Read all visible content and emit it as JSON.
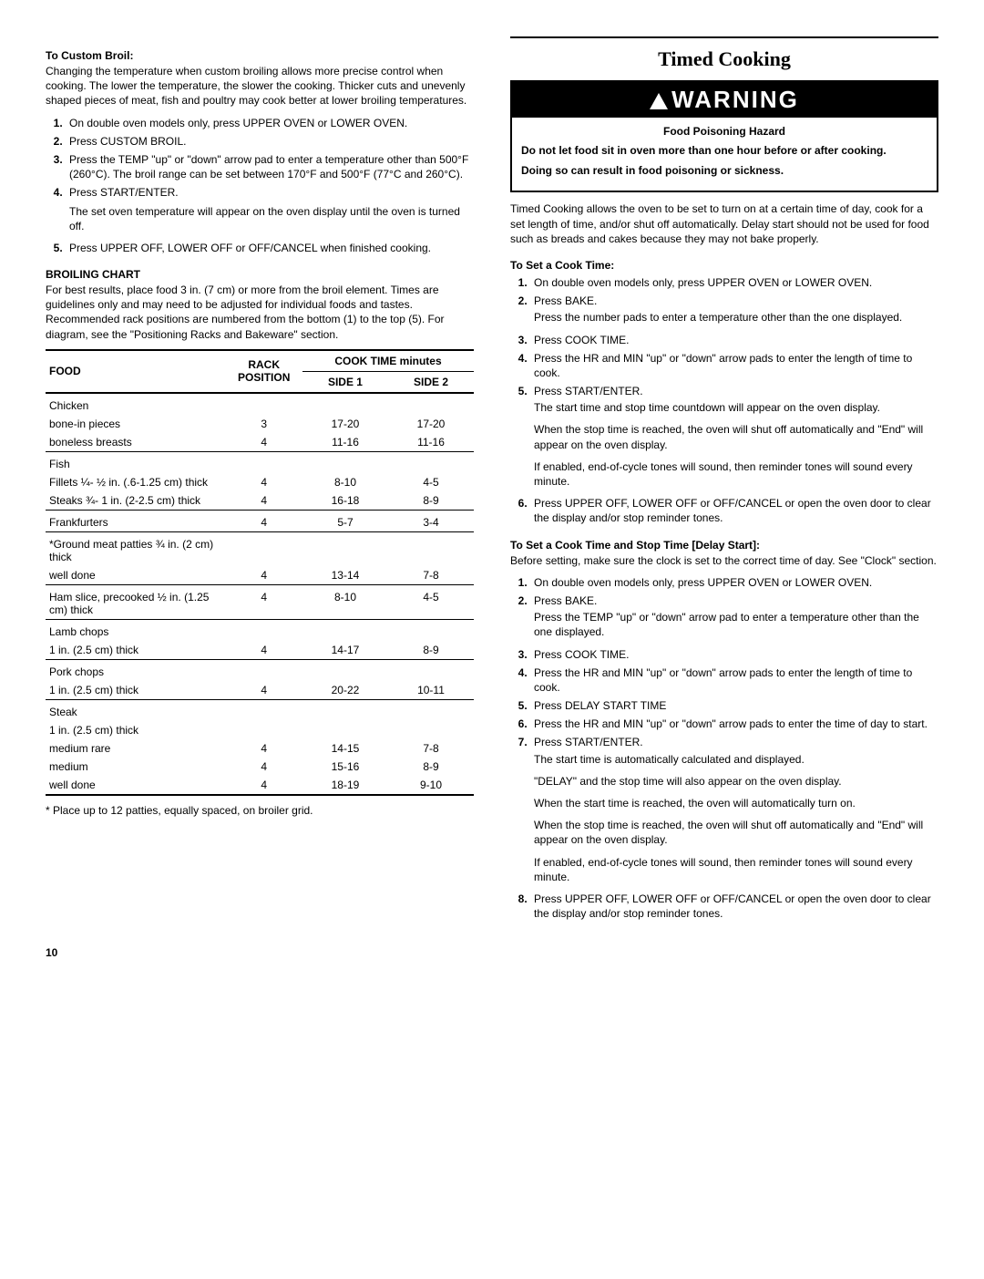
{
  "left": {
    "custom_broil_heading": "To Custom Broil:",
    "custom_broil_intro": "Changing the temperature when custom broiling allows more precise control when cooking. The lower the temperature, the slower the cooking. Thicker cuts and unevenly shaped pieces of meat, fish and poultry may cook better at lower broiling temperatures.",
    "cb": {
      "s1": "On double oven models only, press UPPER OVEN or LOWER OVEN.",
      "s2": "Press CUSTOM BROIL.",
      "s3": "Press the TEMP \"up\" or \"down\" arrow pad to enter a temperature other than 500°F (260°C). The broil range can be set between 170°F and 500°F (77°C and 260°C).",
      "s4": "Press START/ENTER.",
      "s4_note": "The set oven temperature will appear on the oven display until the oven is turned off.",
      "s5": "Press UPPER OFF, LOWER OFF or OFF/CANCEL when finished cooking."
    },
    "chart_heading": "BROILING CHART",
    "chart_intro": "For best results, place food 3 in. (7 cm) or more from the broil element. Times are guidelines only and may need to be adjusted for individual foods and tastes. Recommended rack positions are numbered from the bottom (1) to the top (5). For diagram, see the \"Positioning Racks and Bakeware\" section.",
    "headers": {
      "food": "FOOD",
      "rack": "RACK POSITION",
      "cook": "COOK TIME minutes",
      "side1": "SIDE 1",
      "side2": "SIDE 2"
    },
    "rows": [
      {
        "sep": true,
        "food": "Chicken",
        "rack": "",
        "s1": "",
        "s2": ""
      },
      {
        "food": "bone-in pieces",
        "rack": "3",
        "s1": "17-20",
        "s2": "17-20"
      },
      {
        "food": "boneless breasts",
        "rack": "4",
        "s1": "11-16",
        "s2": "11-16"
      },
      {
        "sep": true,
        "food": "Fish",
        "rack": "",
        "s1": "",
        "s2": ""
      },
      {
        "food": "Fillets ¼- ½ in. (.6-1.25 cm) thick",
        "rack": "4",
        "s1": "8-10",
        "s2": "4-5"
      },
      {
        "food": "Steaks ¾- 1 in. (2-2.5 cm) thick",
        "rack": "4",
        "s1": "16-18",
        "s2": "8-9"
      },
      {
        "sep": true,
        "food": "Frankfurters",
        "rack": "4",
        "s1": "5-7",
        "s2": "3-4"
      },
      {
        "sep": true,
        "food": "*Ground meat patties ¾ in. (2 cm) thick",
        "rack": "",
        "s1": "",
        "s2": ""
      },
      {
        "food": "well done",
        "rack": "4",
        "s1": "13-14",
        "s2": "7-8"
      },
      {
        "sep": true,
        "food": "Ham slice, precooked ½ in. (1.25 cm) thick",
        "rack": "4",
        "s1": "8-10",
        "s2": "4-5"
      },
      {
        "sep": true,
        "food": "Lamb chops",
        "rack": "",
        "s1": "",
        "s2": ""
      },
      {
        "food": "1 in. (2.5 cm) thick",
        "rack": "4",
        "s1": "14-17",
        "s2": "8-9"
      },
      {
        "sep": true,
        "food": "Pork chops",
        "rack": "",
        "s1": "",
        "s2": ""
      },
      {
        "food": "1 in. (2.5 cm) thick",
        "rack": "4",
        "s1": "20-22",
        "s2": "10-11"
      },
      {
        "sep": true,
        "food": "Steak",
        "rack": "",
        "s1": "",
        "s2": ""
      },
      {
        "food": "1 in. (2.5 cm) thick",
        "rack": "",
        "s1": "",
        "s2": ""
      },
      {
        "food": "medium rare",
        "rack": "4",
        "s1": "14-15",
        "s2": "7-8"
      },
      {
        "food": "medium",
        "rack": "4",
        "s1": "15-16",
        "s2": "8-9"
      },
      {
        "last": true,
        "food": "well done",
        "rack": "4",
        "s1": "18-19",
        "s2": "9-10"
      }
    ],
    "footnote": "* Place up to 12 patties, equally spaced, on broiler grid.",
    "pagenum": "10"
  },
  "right": {
    "title": "Timed Cooking",
    "warning_label": "WARNING",
    "hazard": "Food Poisoning Hazard",
    "warn_p1": "Do not let food sit in oven more than one hour before or after cooking.",
    "warn_p2": "Doing so can result in food poisoning or sickness.",
    "intro": "Timed Cooking allows the oven to be set to turn on at a certain time of day, cook for a set length of time, and/or shut off automatically. Delay start should not be used for food such as breads and cakes because they may not bake properly.",
    "ct_heading": "To Set a Cook Time:",
    "ct": {
      "s1": "On double oven models only, press UPPER OVEN or LOWER OVEN.",
      "s2": "Press BAKE.",
      "s2_note": "Press the number pads to enter a temperature other than the one displayed.",
      "s3": "Press COOK TIME.",
      "s4": "Press the HR and MIN \"up\" or \"down\" arrow pads to enter the length of time to cook.",
      "s5": "Press START/ENTER.",
      "s5_note1": "The start time and stop time countdown will appear on the oven display.",
      "s5_note2": "When the stop time is reached, the oven will shut off automatically and \"End\" will appear on the oven display.",
      "s5_note3": "If enabled, end-of-cycle tones will sound, then reminder tones will sound every minute.",
      "s6": "Press UPPER OFF, LOWER OFF or OFF/CANCEL or open the oven door to clear the display and/or stop reminder tones."
    },
    "ds_heading": "To Set a Cook Time and Stop Time [Delay Start]:",
    "ds_intro": "Before setting, make sure the clock is set to the correct time of day. See \"Clock\" section.",
    "ds": {
      "s1": "On double oven models only, press UPPER OVEN or LOWER OVEN.",
      "s2": "Press BAKE.",
      "s2_note": "Press the TEMP \"up\" or \"down\" arrow pad to enter a temperature other than the one displayed.",
      "s3": "Press COOK TIME.",
      "s4": "Press the HR and MIN \"up\" or \"down\" arrow pads to enter the length of time to cook.",
      "s5": "Press DELAY START TIME",
      "s6": "Press the HR and MIN \"up\" or \"down\" arrow pads to enter the time of day to start.",
      "s7": "Press START/ENTER.",
      "s7_note1": "The start time is automatically calculated and displayed.",
      "s7_note2": "\"DELAY\" and the stop time will also appear on the oven display.",
      "s7_note3": "When the start time is reached, the oven will automatically turn on.",
      "s7_note4": "When the stop time is reached, the oven will shut off automatically and \"End\" will appear on the oven display.",
      "s7_note5": "If enabled, end-of-cycle tones will sound, then reminder tones will sound every minute.",
      "s8": "Press UPPER OFF, LOWER OFF or OFF/CANCEL or open the oven door to clear the display and/or stop reminder tones."
    }
  }
}
